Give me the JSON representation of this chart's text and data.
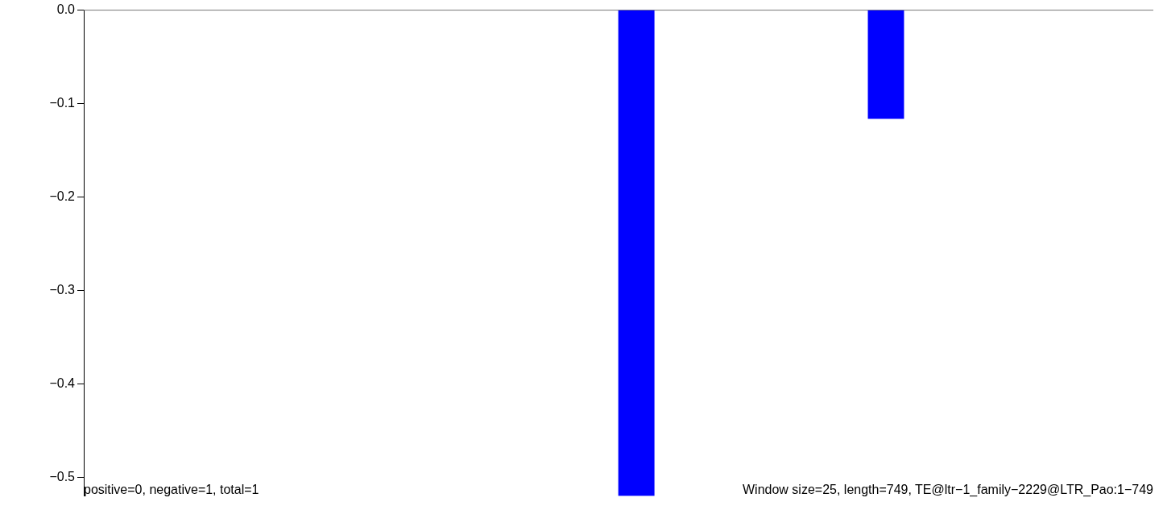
{
  "chart_data": {
    "type": "bar",
    "categories": [
      null,
      null,
      null,
      null,
      null,
      null,
      null,
      null,
      null,
      null,
      null,
      null,
      null,
      null,
      null,
      null,
      null,
      null,
      null,
      null,
      null,
      null,
      null,
      null,
      null,
      null,
      null,
      null,
      null,
      null
    ],
    "values": [
      null,
      null,
      null,
      null,
      null,
      null,
      null,
      null,
      null,
      null,
      null,
      null,
      null,
      null,
      null,
      -0.52,
      null,
      null,
      null,
      null,
      null,
      null,
      -0.116,
      null,
      null,
      null,
      null,
      null,
      null,
      null
    ],
    "color": "#0000ff",
    "ylim": [
      -0.52,
      0
    ],
    "yticks": [
      {
        "value": 0,
        "label": "0.0"
      },
      {
        "value": -0.1,
        "label": "−0.1"
      },
      {
        "value": -0.2,
        "label": "−0.2"
      },
      {
        "value": -0.3,
        "label": "−0.3"
      },
      {
        "value": -0.4,
        "label": "−0.4"
      },
      {
        "value": -0.5,
        "label": "−0.5"
      }
    ],
    "tick_labels": "y",
    "ref_lines": [
      {
        "axis": "y",
        "value": 0,
        "color": "#777777"
      }
    ],
    "annotations": [
      "positive=0, negative=1, total=1",
      "Window size=25, length=749, TE@ltr−1_family−2229@LTR_Pao:1−749"
    ]
  }
}
